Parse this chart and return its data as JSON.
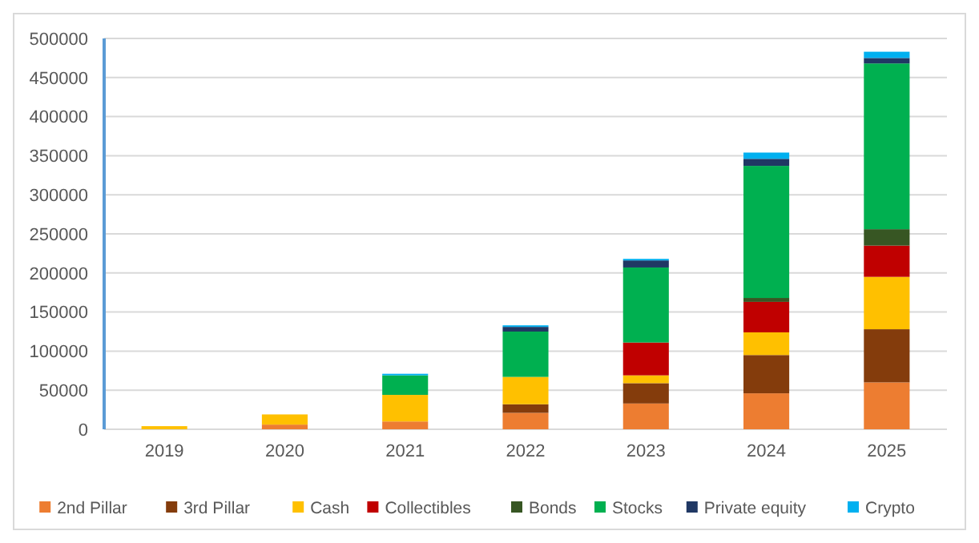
{
  "chart_data": {
    "type": "bar",
    "stacked": true,
    "categories": [
      "2019",
      "2020",
      "2021",
      "2022",
      "2023",
      "2024",
      "2025"
    ],
    "series": [
      {
        "name": "2nd Pillar",
        "color": "#ed7d31",
        "values": [
          0,
          6000,
          10000,
          21000,
          33000,
          46000,
          60000
        ]
      },
      {
        "name": "3rd Pillar",
        "color": "#843c0c",
        "values": [
          0,
          0,
          0,
          11000,
          26000,
          49000,
          68000
        ]
      },
      {
        "name": "Cash",
        "color": "#ffc000",
        "values": [
          4000,
          13000,
          34000,
          35000,
          10000,
          29000,
          67000
        ]
      },
      {
        "name": "Collectibles",
        "color": "#c00000",
        "values": [
          0,
          0,
          0,
          0,
          42000,
          39000,
          40000
        ]
      },
      {
        "name": "Bonds",
        "color": "#375623",
        "values": [
          0,
          0,
          0,
          0,
          0,
          5000,
          21000
        ]
      },
      {
        "name": "Stocks",
        "color": "#00b050",
        "values": [
          0,
          0,
          25000,
          58000,
          96000,
          169000,
          212000
        ]
      },
      {
        "name": "Private equity",
        "color": "#203864",
        "values": [
          0,
          0,
          0,
          6000,
          9000,
          9000,
          7000
        ]
      },
      {
        "name": "Crypto",
        "color": "#00b0f0",
        "values": [
          0,
          0,
          2000,
          2000,
          2000,
          8000,
          8000
        ]
      }
    ],
    "ylim": [
      0,
      500000
    ],
    "yticks": [
      0,
      50000,
      100000,
      150000,
      200000,
      250000,
      300000,
      350000,
      400000,
      450000,
      500000
    ],
    "grid": "y",
    "legend": "bottom"
  }
}
